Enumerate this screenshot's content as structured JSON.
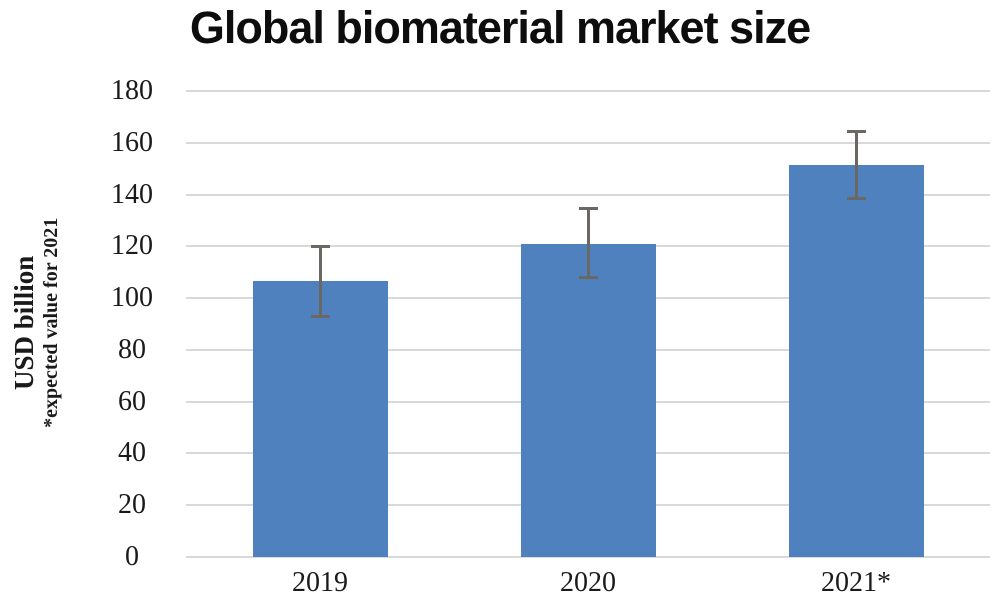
{
  "title": "Global biomaterial market size",
  "y_axis": {
    "label": "USD billion",
    "note": "*expected value for 2021"
  },
  "colors": {
    "bar": "#4e81bd",
    "gridline": "#d9d9d9",
    "error_bar": "#6b6864",
    "title_text": "#0d0d0d",
    "tick_text": "#1a1a1a"
  },
  "chart_data": {
    "type": "bar",
    "title": "Global biomaterial market size",
    "categories": [
      "2019",
      "2020",
      "2021*"
    ],
    "values": [
      106.5,
      121,
      151.5
    ],
    "error_low": [
      93,
      108,
      138.5
    ],
    "error_high": [
      120,
      134.5,
      164.5
    ],
    "xlabel": "",
    "ylabel": "USD billion",
    "ylabel_note": "*expected value for 2021",
    "ylim": [
      0,
      180
    ],
    "yticks": [
      0,
      20,
      40,
      60,
      80,
      100,
      120,
      140,
      160,
      180
    ],
    "grid": "horizontal",
    "legend": "none"
  }
}
